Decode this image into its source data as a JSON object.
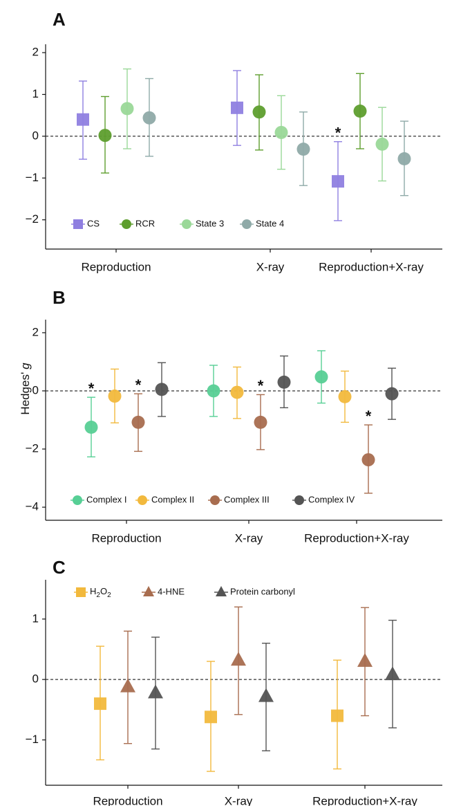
{
  "y_axis_label": "Hedges'",
  "y_axis_label_italic": "g",
  "chart_data": [
    {
      "panel": "A",
      "type": "scatter",
      "categories": [
        "Reproduction",
        "X-ray",
        "Reproduction+X-ray"
      ],
      "ylim": [
        -2.7,
        2.2
      ],
      "yticks": [
        2,
        1,
        0,
        -1,
        -2
      ],
      "ytick_labels": [
        "2",
        "1",
        "0",
        "−1",
        "−2"
      ],
      "reference_line": 0,
      "legend_position": "bottom-left",
      "series": [
        {
          "name": "CS",
          "shape": "square",
          "color": "#8f7fe0",
          "values": [
            0.4,
            0.68,
            -1.08
          ],
          "lower": [
            -0.55,
            -0.22,
            -2.02
          ],
          "upper": [
            1.32,
            1.57,
            -0.13
          ],
          "significant": [
            false,
            false,
            true
          ]
        },
        {
          "name": "RCR",
          "shape": "circle",
          "color": "#5e9e2e",
          "values": [
            0.02,
            0.58,
            0.6
          ],
          "lower": [
            -0.88,
            -0.33,
            -0.3
          ],
          "upper": [
            0.95,
            1.47,
            1.5
          ],
          "significant": [
            false,
            false,
            false
          ]
        },
        {
          "name": "State 3",
          "shape": "circle",
          "color": "#9ad898",
          "values": [
            0.66,
            0.09,
            -0.19
          ],
          "lower": [
            -0.3,
            -0.79,
            -1.07
          ],
          "upper": [
            1.61,
            0.97,
            0.69
          ],
          "significant": [
            false,
            false,
            false
          ]
        },
        {
          "name": "State 4",
          "shape": "circle",
          "color": "#8faaa8",
          "values": [
            0.44,
            -0.31,
            -0.54
          ],
          "lower": [
            -0.48,
            -1.18,
            -1.42
          ],
          "upper": [
            1.38,
            0.58,
            0.36
          ],
          "significant": [
            false,
            false,
            false
          ]
        }
      ]
    },
    {
      "panel": "B",
      "type": "scatter",
      "categories": [
        "Reproduction",
        "X-ray",
        "Reproduction+X-ray"
      ],
      "ylim": [
        -4.45,
        2.45
      ],
      "yticks": [
        2,
        0,
        -2,
        -4
      ],
      "ytick_labels": [
        "2",
        "0",
        "−2",
        "−4"
      ],
      "reference_line": 0,
      "legend_position": "bottom-left",
      "series": [
        {
          "name": "Complex I",
          "shape": "circle",
          "color": "#57cf95",
          "values": [
            -1.25,
            0.0,
            0.48
          ],
          "lower": [
            -2.27,
            -0.88,
            -0.42
          ],
          "upper": [
            -0.22,
            0.88,
            1.38
          ],
          "significant": [
            true,
            false,
            false
          ]
        },
        {
          "name": "Complex II",
          "shape": "circle",
          "color": "#f2b93d",
          "values": [
            -0.18,
            -0.05,
            -0.2
          ],
          "lower": [
            -1.1,
            -0.95,
            -1.08
          ],
          "upper": [
            0.75,
            0.82,
            0.68
          ],
          "significant": [
            false,
            false,
            false
          ]
        },
        {
          "name": "Complex III",
          "shape": "circle",
          "color": "#a86d4f",
          "values": [
            -1.08,
            -1.08,
            -2.37
          ],
          "lower": [
            -2.08,
            -2.02,
            -3.52
          ],
          "upper": [
            -0.1,
            -0.13,
            -1.17
          ],
          "significant": [
            true,
            true,
            true
          ]
        },
        {
          "name": "Complex IV",
          "shape": "circle",
          "color": "#545454",
          "values": [
            0.05,
            0.3,
            -0.1
          ],
          "lower": [
            -0.88,
            -0.58,
            -0.98
          ],
          "upper": [
            0.97,
            1.2,
            0.78
          ],
          "significant": [
            false,
            false,
            false
          ]
        }
      ]
    },
    {
      "panel": "C",
      "type": "scatter",
      "categories": [
        "Reproduction",
        "X-ray",
        "Reproduction+X-ray"
      ],
      "ylim": [
        -1.75,
        1.65
      ],
      "yticks": [
        1,
        0,
        -1
      ],
      "ytick_labels": [
        "1",
        "0",
        "−1"
      ],
      "reference_line": 0,
      "legend_position": "top-left",
      "series": [
        {
          "name": "H2O2",
          "label_base": "H",
          "label_sub1": "2",
          "label_mid": "O",
          "label_sub2": "2",
          "shape": "square",
          "color": "#f2b93d",
          "values": [
            -0.4,
            -0.62,
            -0.6
          ],
          "lower": [
            -1.33,
            -1.52,
            -1.48
          ],
          "upper": [
            0.55,
            0.3,
            0.32
          ],
          "significant": [
            false,
            false,
            false
          ]
        },
        {
          "name": "4-HNE",
          "shape": "triangle",
          "color": "#a86d4f",
          "values": [
            -0.12,
            0.32,
            0.3
          ],
          "lower": [
            -1.06,
            -0.58,
            -0.6
          ],
          "upper": [
            0.8,
            1.2,
            1.19
          ],
          "significant": [
            false,
            false,
            false
          ]
        },
        {
          "name": "Protein carbonyl",
          "shape": "triangle",
          "color": "#545454",
          "values": [
            -0.22,
            -0.28,
            0.08
          ],
          "lower": [
            -1.15,
            -1.18,
            -0.8
          ],
          "upper": [
            0.7,
            0.6,
            0.98
          ],
          "significant": [
            false,
            false,
            false
          ]
        }
      ]
    }
  ]
}
